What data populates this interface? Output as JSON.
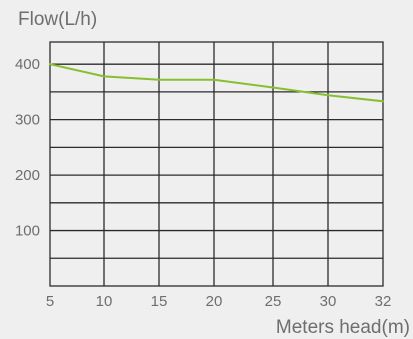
{
  "colors": {
    "background": "#efefef",
    "grid": "#2b2b2b",
    "axis_text": "#6e6e6e",
    "line": "#86bf2f"
  },
  "chart_data": {
    "type": "line",
    "ylabel": "Flow(L/h)",
    "xlabel": "Meters head(m)",
    "x_ticks": [
      5,
      10,
      15,
      20,
      25,
      30,
      32
    ],
    "y_ticks": [
      100,
      200,
      300,
      400
    ],
    "ylim": [
      0,
      440
    ],
    "grid": true,
    "series": [
      {
        "values": [
          {
            "x": 5,
            "y": 400
          },
          {
            "x": 10,
            "y": 378
          },
          {
            "x": 15,
            "y": 372
          },
          {
            "x": 20,
            "y": 372
          },
          {
            "x": 25,
            "y": 358
          },
          {
            "x": 30,
            "y": 344
          },
          {
            "x": 32,
            "y": 333
          }
        ]
      }
    ]
  }
}
